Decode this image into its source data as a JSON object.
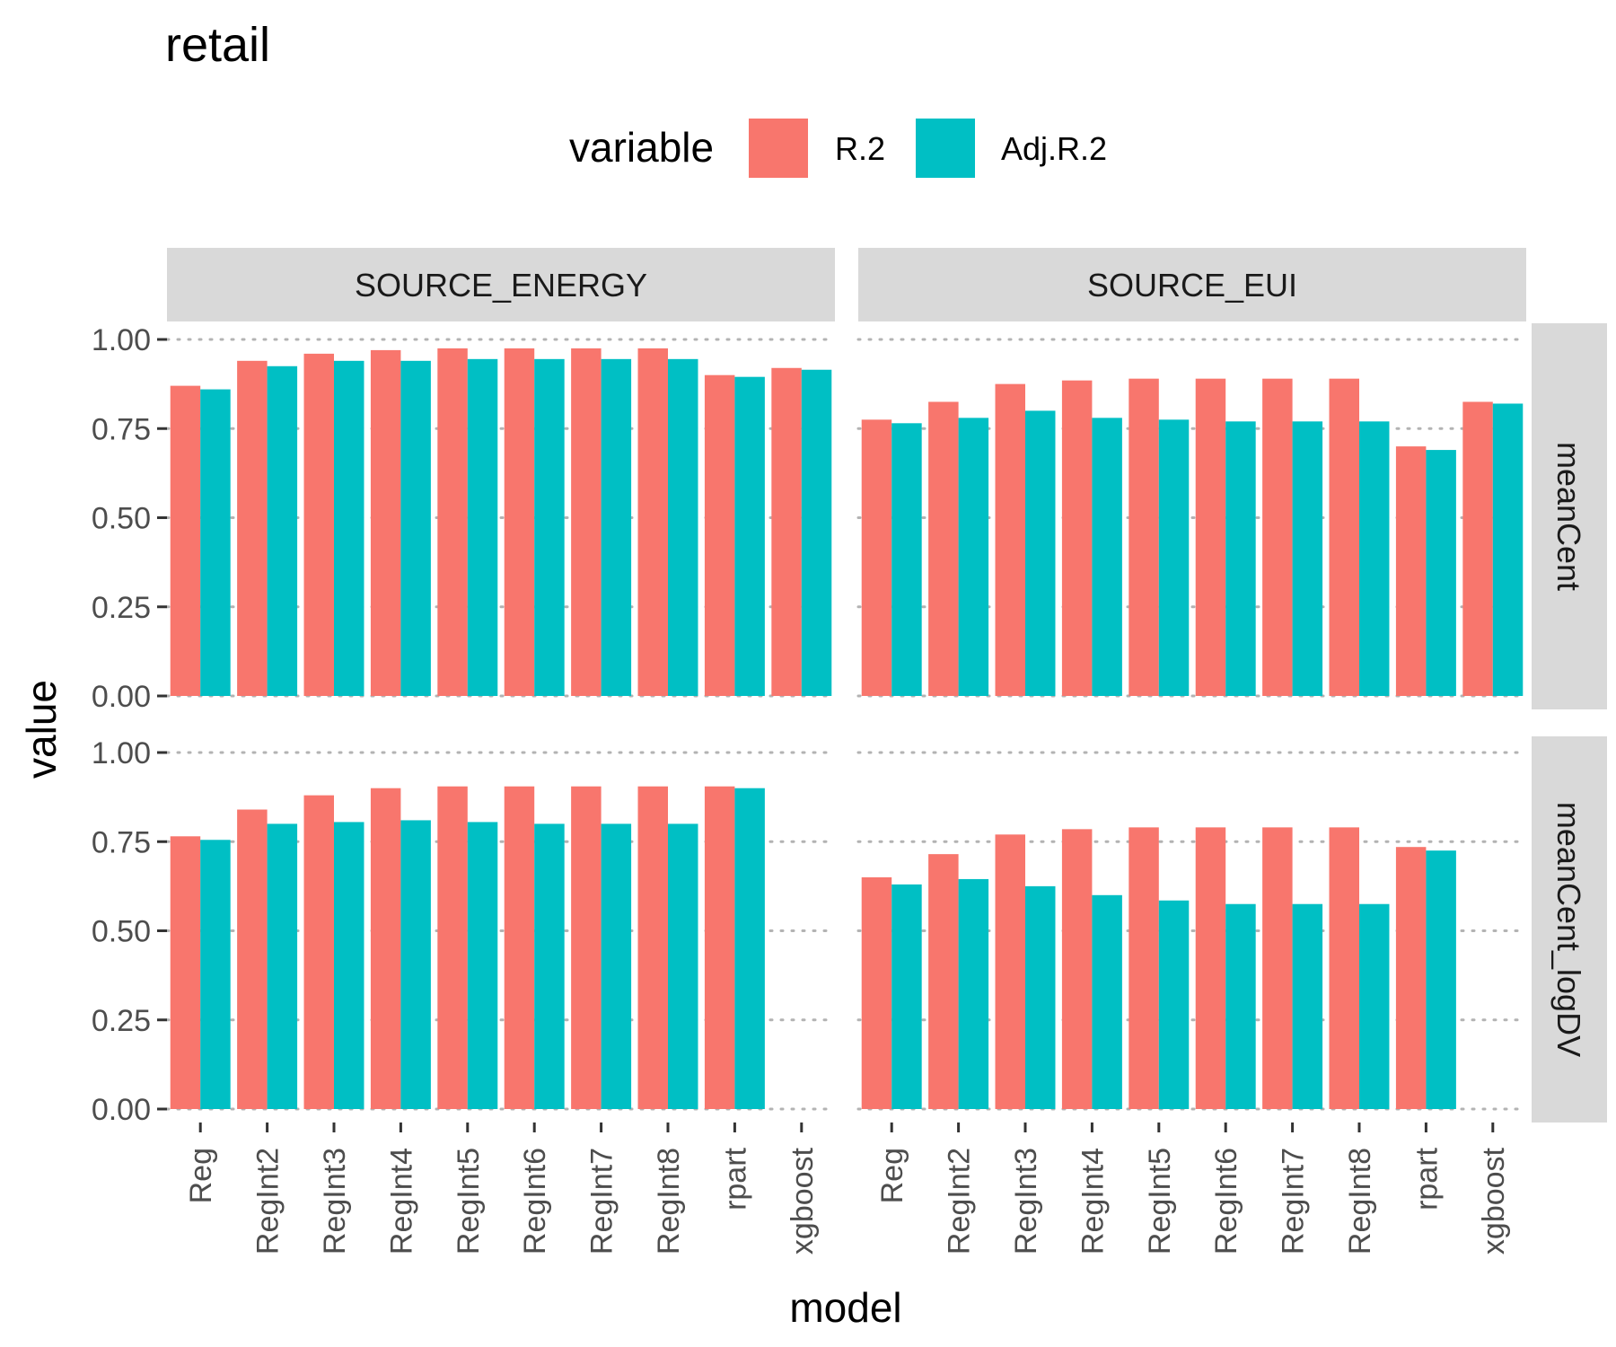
{
  "title": "retail",
  "legend": {
    "title": "variable",
    "items": [
      {
        "label": "R.2",
        "color": "#F8766D"
      },
      {
        "label": "Adj.R.2",
        "color": "#00BFC4"
      }
    ]
  },
  "axes": {
    "xlabel": "model",
    "ylabel": "value",
    "yticks": [
      "0.00",
      "0.25",
      "0.50",
      "0.75",
      "1.00"
    ]
  },
  "chart_data": {
    "type": "bar",
    "facet_columns": [
      "SOURCE_ENERGY",
      "SOURCE_EUI"
    ],
    "facet_rows": [
      "meanCent",
      "meanCent_logDV"
    ],
    "categories": [
      "Reg",
      "RegInt2",
      "RegInt3",
      "RegInt4",
      "RegInt5",
      "RegInt6",
      "RegInt7",
      "RegInt8",
      "rpart",
      "xgboost"
    ],
    "ylim": [
      0,
      1
    ],
    "grid": true,
    "legend_position": "top",
    "series_names": [
      "R.2",
      "Adj.R.2"
    ],
    "panels": [
      {
        "col": "SOURCE_ENERGY",
        "row": "meanCent",
        "series": [
          {
            "name": "R.2",
            "values": [
              0.87,
              0.94,
              0.96,
              0.97,
              0.975,
              0.975,
              0.975,
              0.975,
              0.9,
              0.92
            ]
          },
          {
            "name": "Adj.R.2",
            "values": [
              0.86,
              0.925,
              0.94,
              0.94,
              0.945,
              0.945,
              0.945,
              0.945,
              0.895,
              0.915
            ]
          }
        ]
      },
      {
        "col": "SOURCE_EUI",
        "row": "meanCent",
        "series": [
          {
            "name": "R.2",
            "values": [
              0.775,
              0.825,
              0.875,
              0.885,
              0.89,
              0.89,
              0.89,
              0.89,
              0.7,
              0.825
            ]
          },
          {
            "name": "Adj.R.2",
            "values": [
              0.765,
              0.78,
              0.8,
              0.78,
              0.775,
              0.77,
              0.77,
              0.77,
              0.69,
              0.82
            ]
          }
        ]
      },
      {
        "col": "SOURCE_ENERGY",
        "row": "meanCent_logDV",
        "series": [
          {
            "name": "R.2",
            "values": [
              0.765,
              0.84,
              0.88,
              0.9,
              0.905,
              0.905,
              0.905,
              0.905,
              0.905,
              null
            ]
          },
          {
            "name": "Adj.R.2",
            "values": [
              0.755,
              0.8,
              0.805,
              0.81,
              0.805,
              0.8,
              0.8,
              0.8,
              0.9,
              null
            ]
          }
        ]
      },
      {
        "col": "SOURCE_EUI",
        "row": "meanCent_logDV",
        "series": [
          {
            "name": "R.2",
            "values": [
              0.65,
              0.715,
              0.77,
              0.785,
              0.79,
              0.79,
              0.79,
              0.79,
              0.735,
              null
            ]
          },
          {
            "name": "Adj.R.2",
            "values": [
              0.63,
              0.645,
              0.625,
              0.6,
              0.585,
              0.575,
              0.575,
              0.575,
              0.725,
              null
            ]
          }
        ]
      }
    ]
  }
}
